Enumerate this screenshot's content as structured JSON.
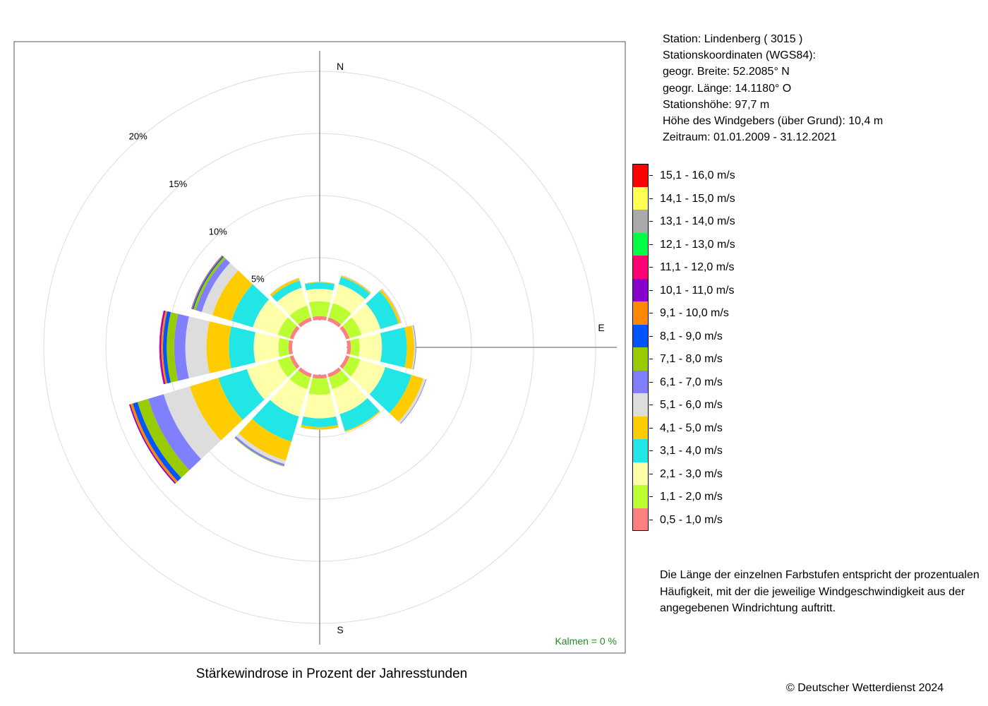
{
  "station": {
    "name_line": "Station:  Lindenberg  ( 3015 )",
    "coords_header": "Stationskoordinaten (WGS84):",
    "lat_line": "geogr. Breite: 52.2085° N",
    "lon_line": "geogr. Länge: 14.1180° O",
    "elevation_line": "Stationshöhe: 97,7 m",
    "sensor_height_line": "Höhe des Windgebers (über Grund): 10,4 m",
    "period_line": "Zeitraum: 01.01.2009 - 31.12.2021"
  },
  "legend": [
    {
      "label": "15,1 - 16,0 m/s",
      "color": "#ff0000"
    },
    {
      "label": "14,1 - 15,0 m/s",
      "color": "#ffff55"
    },
    {
      "label": "13,1 - 14,0 m/s",
      "color": "#aaaaaa"
    },
    {
      "label": "12,1 - 13,0 m/s",
      "color": "#00ff44"
    },
    {
      "label": "11,1 - 12,0 m/s",
      "color": "#ff0077"
    },
    {
      "label": "10,1 - 11,0 m/s",
      "color": "#8800cc"
    },
    {
      "label": "9,1 - 10,0 m/s",
      "color": "#ff8800"
    },
    {
      "label": "8,1 - 9,0 m/s",
      "color": "#0055ff"
    },
    {
      "label": "7,1 - 8,0 m/s",
      "color": "#99cc00"
    },
    {
      "label": "6,1 - 7,0 m/s",
      "color": "#8080ff"
    },
    {
      "label": "5,1 - 6,0 m/s",
      "color": "#dddddd"
    },
    {
      "label": "4,1 - 5,0 m/s",
      "color": "#ffcc00"
    },
    {
      "label": "3,1 - 4,0 m/s",
      "color": "#22e6e6"
    },
    {
      "label": "2,1 - 3,0 m/s",
      "color": "#ffffaa"
    },
    {
      "label": "1,1 - 2,0 m/s",
      "color": "#bbff33"
    },
    {
      "label": "0,5 - 1,0 m/s",
      "color": "#ff8080"
    }
  ],
  "note_lines": [
    "Die Länge der einzelnen Farbstufen entspricht der prozentualen",
    "Häufigkeit, mit der die jeweilige Windgeschwindigkeit aus der",
    "angegebenen Windrichtung auftritt."
  ],
  "copyright": "© Deutscher Wetterdienst  2024",
  "chart_data": {
    "type": "wind-rose",
    "title": "Stärkewindrose in Prozent der Jahresstunden",
    "compass_labels": {
      "n": "N",
      "e": "E",
      "s": "S"
    },
    "calm_label": "Kalmen  =  0 %",
    "calm_color": "#228b22",
    "ring_values": [
      5,
      10,
      15,
      20
    ],
    "ring_labels": [
      "5%",
      "10%",
      "15%",
      "20%"
    ],
    "unit": "percent of annual hours",
    "directions_deg": [
      0,
      30,
      60,
      90,
      120,
      150,
      180,
      210,
      240,
      270,
      300,
      330
    ],
    "speed_classes": [
      "0,5 - 1,0 m/s",
      "1,1 - 2,0 m/s",
      "2,1 - 3,0 m/s",
      "3,1 - 4,0 m/s",
      "4,1 - 5,0 m/s",
      "5,1 - 6,0 m/s",
      "6,1 - 7,0 m/s",
      "7,1 - 8,0 m/s",
      "8,1 - 9,0 m/s",
      "9,1 - 10,0 m/s",
      "10,1 - 11,0 m/s",
      "11,1 - 12,0 m/s",
      "12,1 - 13,0 m/s",
      "13,1 - 14,0 m/s",
      "14,1 - 15,0 m/s",
      "15,1 - 16,0 m/s"
    ],
    "speed_colors": [
      "#ff8080",
      "#bbff33",
      "#ffffaa",
      "#22e6e6",
      "#ffcc00",
      "#dddddd",
      "#8080ff",
      "#99cc00",
      "#0055ff",
      "#ff8800",
      "#8800cc",
      "#ff0077",
      "#00ff44",
      "#aaaaaa",
      "#ffff55",
      "#ff0000"
    ],
    "sectors": [
      {
        "dir": 0,
        "values": [
          0.3,
          1.2,
          1.0,
          0.5,
          0.05,
          0.02,
          0,
          0,
          0,
          0,
          0,
          0,
          0,
          0,
          0,
          0
        ]
      },
      {
        "dir": 30,
        "values": [
          0.3,
          1.2,
          1.6,
          0.6,
          0.1,
          0.03,
          0.01,
          0,
          0,
          0,
          0,
          0,
          0,
          0,
          0,
          0
        ]
      },
      {
        "dir": 60,
        "values": [
          0.3,
          1.0,
          1.6,
          1.5,
          0.2,
          0.05,
          0.02,
          0,
          0,
          0,
          0,
          0,
          0,
          0,
          0,
          0
        ]
      },
      {
        "dir": 90,
        "values": [
          0.3,
          0.7,
          1.8,
          2.0,
          0.6,
          0.1,
          0.05,
          0.01,
          0,
          0,
          0,
          0,
          0,
          0,
          0,
          0
        ]
      },
      {
        "dir": 120,
        "values": [
          0.3,
          0.9,
          2.1,
          2.2,
          1.0,
          0.2,
          0.05,
          0.01,
          0,
          0,
          0,
          0,
          0,
          0,
          0,
          0
        ]
      },
      {
        "dir": 150,
        "values": [
          0.3,
          1.0,
          2.1,
          1.4,
          0.1,
          0.02,
          0,
          0,
          0,
          0,
          0,
          0,
          0,
          0,
          0,
          0
        ]
      },
      {
        "dir": 180,
        "values": [
          0.3,
          1.3,
          1.9,
          0.7,
          0.2,
          0.02,
          0,
          0,
          0,
          0,
          0,
          0,
          0,
          0,
          0,
          0
        ]
      },
      {
        "dir": 210,
        "values": [
          0.3,
          1.0,
          2.3,
          2.1,
          1.6,
          0.3,
          0.15,
          0.05,
          0,
          0,
          0,
          0,
          0,
          0,
          0,
          0
        ]
      },
      {
        "dir": 240,
        "values": [
          0.3,
          1.0,
          2.6,
          2.4,
          2.4,
          2.2,
          1.3,
          0.9,
          0.4,
          0.2,
          0.1,
          0,
          0,
          0,
          0,
          0
        ]
      },
      {
        "dir": 270,
        "values": [
          0.3,
          0.8,
          2.0,
          2.0,
          1.8,
          1.7,
          0.9,
          0.6,
          0.3,
          0.15,
          0.1,
          0.05,
          0,
          0,
          0,
          0
        ]
      },
      {
        "dir": 300,
        "values": [
          0.3,
          1.0,
          2.1,
          1.8,
          1.6,
          0.9,
          0.5,
          0.2,
          0.1,
          0.05,
          0.03,
          0,
          0,
          0,
          0,
          0
        ]
      },
      {
        "dir": 330,
        "values": [
          0.3,
          1.0,
          1.5,
          0.6,
          0.2,
          0.05,
          0,
          0,
          0,
          0,
          0,
          0,
          0,
          0,
          0,
          0
        ]
      }
    ]
  }
}
